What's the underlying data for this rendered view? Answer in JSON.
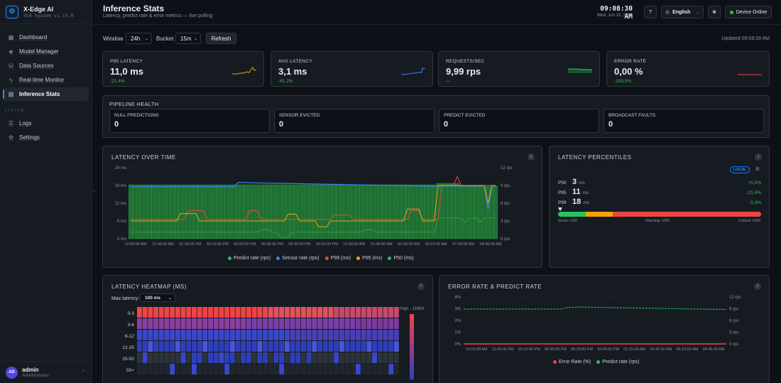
{
  "brand": {
    "name": "X-Edge AI",
    "sub": "VCR System v1.13.0"
  },
  "nav": {
    "items": [
      {
        "label": "Dashboard",
        "icon": "grid-icon"
      },
      {
        "label": "Model Manager",
        "icon": "cube-icon"
      },
      {
        "label": "Data Sources",
        "icon": "database-icon"
      },
      {
        "label": "Real-time Monitor",
        "icon": "pulse-icon"
      },
      {
        "label": "Inference Stats",
        "icon": "bar-chart-icon"
      }
    ],
    "section": "SYSTEM",
    "system_items": [
      {
        "label": "Logs",
        "icon": "log-icon"
      },
      {
        "label": "Settings",
        "icon": "gear-icon"
      }
    ]
  },
  "user": {
    "initials": "AD",
    "name": "admin",
    "role": "Administrator"
  },
  "header": {
    "title": "Inference Stats",
    "subtitle": "Latency, predict rate & error metrics — live polling",
    "clock": "09:08:30 AM",
    "date": "Wed, Jun 10, 2026",
    "help": "?",
    "language": "English",
    "status": "Device Online"
  },
  "toolbar": {
    "window_label": "Window",
    "window_value": "24h",
    "bucket_label": "Bucket",
    "bucket_value": "15m",
    "refresh": "Refresh",
    "updated": "Updated 09:08:28 AM"
  },
  "kpis": [
    {
      "label": "P95 LATENCY",
      "value": "11,0 ms",
      "delta": "-21,4%",
      "color": "#f0a30a"
    },
    {
      "label": "AVG LATENCY",
      "value": "3,1 ms",
      "delta": "-61,2%",
      "color": "#3b82f6"
    },
    {
      "label": "REQUESTS/SEC",
      "value": "9,99 rps",
      "delta": "—",
      "color": "#22c55e"
    },
    {
      "label": "ERROR RATE",
      "value": "0,00 %",
      "delta": "-100,0%",
      "color": "#ef4444"
    }
  ],
  "pipeline": {
    "title": "PIPELINE HEALTH",
    "items": [
      {
        "label": "NULL PREDICTIONS",
        "value": "0"
      },
      {
        "label": "SENSOR EVICTED",
        "value": "0"
      },
      {
        "label": "PREDICT EVICTED",
        "value": "0"
      },
      {
        "label": "BROADCAST FAULTS",
        "value": "0"
      }
    ]
  },
  "latency_chart": {
    "title": "LATENCY OVER TIME",
    "info": "i",
    "y_left_ticks": [
      "24 ms",
      "18 ms",
      "12 ms",
      "6 ms",
      "0 ms"
    ],
    "y_right_ticks": [
      "12 rps",
      "9 rps",
      "6 rps",
      "3 rps",
      "0 rps"
    ],
    "x_ticks": [
      "10:00:00 AM",
      "11:45:00 AM",
      "01:30:00 PM",
      "03:15:00 PM",
      "05:00:00 PM",
      "06:45:00 PM",
      "08:30:00 PM",
      "10:15:00 PM",
      "12:00:00 AM",
      "01:45:00 AM",
      "03:30:00 AM",
      "05:15:00 AM",
      "07:00:00 AM",
      "08:45:00 AM"
    ],
    "legend": [
      {
        "label": "Predict rate (rps)",
        "color": "#22c55e"
      },
      {
        "label": "Sensor rate (rps)",
        "color": "#3b82f6"
      },
      {
        "label": "P99 (ms)",
        "color": "#ef4444"
      },
      {
        "label": "P95 (ms)",
        "color": "#f0a30a"
      },
      {
        "label": "P50 (ms)",
        "color": "#22c55e"
      }
    ]
  },
  "percentiles": {
    "title": "LATENCY PERCENTILES",
    "badge": "LOCAL",
    "rows": [
      {
        "label": "P50",
        "value": "3",
        "unit": "ms",
        "delta": "+0,0%"
      },
      {
        "label": "P95",
        "value": "11",
        "unit": "ms",
        "delta": "-21,4%"
      },
      {
        "label": "P99",
        "value": "18",
        "unit": "ms",
        "delta": "-5,3%"
      }
    ],
    "marker_fraction": 0.01,
    "bar_colors": [
      "#22c55e",
      "#f0a30a",
      "#ef4444"
    ],
    "scale_labels": [
      "Good <100",
      "Warning <200",
      "Critical >200"
    ]
  },
  "heatmap": {
    "title": "LATENCY HEATMAP (MS)",
    "max_label": "Max latency:",
    "max_value": "100 ms",
    "rows": [
      "0-3",
      "3-6",
      "6-12",
      "12-25",
      "25-50",
      "50+"
    ],
    "high_label": "High - 11669"
  },
  "error_chart": {
    "title": "ERROR RATE & PREDICT RATE",
    "y_left_ticks": [
      "4%",
      "3%",
      "2%",
      "1%",
      "0%"
    ],
    "y_right_ticks": [
      "12 rps",
      "9 rps",
      "6 rps",
      "3 rps",
      "0 rps"
    ],
    "x_ticks": [
      "10:15:00 AM",
      "12:45:00 PM",
      "03:15:00 PM",
      "05:45:00 PM",
      "08:15:00 PM",
      "10:45:00 PM",
      "01:15:00 AM",
      "03:45:00 AM",
      "06:15:00 AM",
      "08:45:00 AM"
    ],
    "legend": [
      {
        "label": "Error Rate (%)",
        "color": "#ef4444"
      },
      {
        "label": "Predict rate (rps)",
        "color": "#22c55e"
      }
    ]
  }
}
